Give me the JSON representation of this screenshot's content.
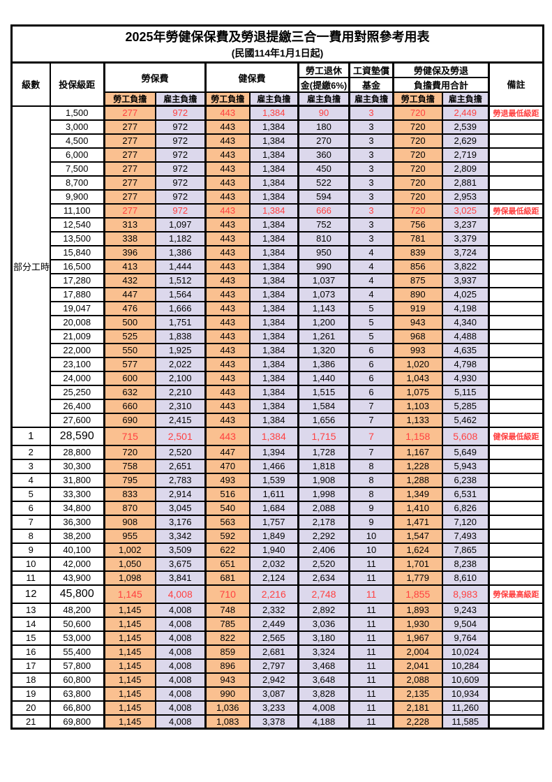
{
  "title": "2025年勞健保保費及勞退提繳三合一費用對照參考用表",
  "subtitle": "(民國114年1月1日起)",
  "header": {
    "level": "級數",
    "bracket": "投保級距",
    "labor_fee": "勞保費",
    "health_fee": "健保費",
    "pension_top": "勞工退休",
    "pension_bottom": "金(提繳6%)",
    "fund_top": "工資墊償",
    "fund_bottom": "基金",
    "total_top": "勞健保及勞退",
    "total_bottom": "負擔費用合計",
    "note": "備註",
    "employee_label": "勞工負擔",
    "employer_label": "雇主負擔"
  },
  "part_time_label": "部分工時",
  "colors": {
    "employee_bg": "#FAC090",
    "employer_bg": "#DCD8EC",
    "highlight_red": "#FF4040",
    "border": "#000000"
  },
  "rows": [
    {
      "level": "",
      "bracket": "1,500",
      "values": [
        "277",
        "972",
        "443",
        "1,384",
        "90",
        "3",
        "720",
        "2,449"
      ],
      "note": "勞退最低級距",
      "highlight": true,
      "big": false
    },
    {
      "level": "",
      "bracket": "3,000",
      "values": [
        "277",
        "972",
        "443",
        "1,384",
        "180",
        "3",
        "720",
        "2,539"
      ],
      "note": "",
      "highlight": false,
      "big": false
    },
    {
      "level": "",
      "bracket": "4,500",
      "values": [
        "277",
        "972",
        "443",
        "1,384",
        "270",
        "3",
        "720",
        "2,629"
      ],
      "note": "",
      "highlight": false,
      "big": false
    },
    {
      "level": "",
      "bracket": "6,000",
      "values": [
        "277",
        "972",
        "443",
        "1,384",
        "360",
        "3",
        "720",
        "2,719"
      ],
      "note": "",
      "highlight": false,
      "big": false
    },
    {
      "level": "",
      "bracket": "7,500",
      "values": [
        "277",
        "972",
        "443",
        "1,384",
        "450",
        "3",
        "720",
        "2,809"
      ],
      "note": "",
      "highlight": false,
      "big": false
    },
    {
      "level": "",
      "bracket": "8,700",
      "values": [
        "277",
        "972",
        "443",
        "1,384",
        "522",
        "3",
        "720",
        "2,881"
      ],
      "note": "",
      "highlight": false,
      "big": false
    },
    {
      "level": "",
      "bracket": "9,900",
      "values": [
        "277",
        "972",
        "443",
        "1,384",
        "594",
        "3",
        "720",
        "2,953"
      ],
      "note": "",
      "highlight": false,
      "big": false
    },
    {
      "level": "",
      "bracket": "11,100",
      "values": [
        "277",
        "972",
        "443",
        "1,384",
        "666",
        "3",
        "720",
        "3,025"
      ],
      "note": "勞保最低級距",
      "highlight": true,
      "big": false
    },
    {
      "level": "",
      "bracket": "12,540",
      "values": [
        "313",
        "1,097",
        "443",
        "1,384",
        "752",
        "3",
        "756",
        "3,237"
      ],
      "note": "",
      "highlight": false,
      "big": false
    },
    {
      "level": "",
      "bracket": "13,500",
      "values": [
        "338",
        "1,182",
        "443",
        "1,384",
        "810",
        "3",
        "781",
        "3,379"
      ],
      "note": "",
      "highlight": false,
      "big": false
    },
    {
      "level": "",
      "bracket": "15,840",
      "values": [
        "396",
        "1,386",
        "443",
        "1,384",
        "950",
        "4",
        "839",
        "3,724"
      ],
      "note": "",
      "highlight": false,
      "big": false
    },
    {
      "level": "",
      "bracket": "16,500",
      "values": [
        "413",
        "1,444",
        "443",
        "1,384",
        "990",
        "4",
        "856",
        "3,822"
      ],
      "note": "",
      "highlight": false,
      "big": false
    },
    {
      "level": "",
      "bracket": "17,280",
      "values": [
        "432",
        "1,512",
        "443",
        "1,384",
        "1,037",
        "4",
        "875",
        "3,937"
      ],
      "note": "",
      "highlight": false,
      "big": false
    },
    {
      "level": "",
      "bracket": "17,880",
      "values": [
        "447",
        "1,564",
        "443",
        "1,384",
        "1,073",
        "4",
        "890",
        "4,025"
      ],
      "note": "",
      "highlight": false,
      "big": false
    },
    {
      "level": "",
      "bracket": "19,047",
      "values": [
        "476",
        "1,666",
        "443",
        "1,384",
        "1,143",
        "5",
        "919",
        "4,198"
      ],
      "note": "",
      "highlight": false,
      "big": false
    },
    {
      "level": "",
      "bracket": "20,008",
      "values": [
        "500",
        "1,751",
        "443",
        "1,384",
        "1,200",
        "5",
        "943",
        "4,340"
      ],
      "note": "",
      "highlight": false,
      "big": false
    },
    {
      "level": "",
      "bracket": "21,009",
      "values": [
        "525",
        "1,838",
        "443",
        "1,384",
        "1,261",
        "5",
        "968",
        "4,488"
      ],
      "note": "",
      "highlight": false,
      "big": false
    },
    {
      "level": "",
      "bracket": "22,000",
      "values": [
        "550",
        "1,925",
        "443",
        "1,384",
        "1,320",
        "6",
        "993",
        "4,635"
      ],
      "note": "",
      "highlight": false,
      "big": false
    },
    {
      "level": "",
      "bracket": "23,100",
      "values": [
        "577",
        "2,022",
        "443",
        "1,384",
        "1,386",
        "6",
        "1,020",
        "4,798"
      ],
      "note": "",
      "highlight": false,
      "big": false
    },
    {
      "level": "",
      "bracket": "24,000",
      "values": [
        "600",
        "2,100",
        "443",
        "1,384",
        "1,440",
        "6",
        "1,043",
        "4,930"
      ],
      "note": "",
      "highlight": false,
      "big": false
    },
    {
      "level": "",
      "bracket": "25,250",
      "values": [
        "632",
        "2,210",
        "443",
        "1,384",
        "1,515",
        "6",
        "1,075",
        "5,115"
      ],
      "note": "",
      "highlight": false,
      "big": false
    },
    {
      "level": "",
      "bracket": "26,400",
      "values": [
        "660",
        "2,310",
        "443",
        "1,384",
        "1,584",
        "7",
        "1,103",
        "5,285"
      ],
      "note": "",
      "highlight": false,
      "big": false
    },
    {
      "level": "",
      "bracket": "27,600",
      "values": [
        "690",
        "2,415",
        "443",
        "1,384",
        "1,656",
        "7",
        "1,133",
        "5,462"
      ],
      "note": "",
      "highlight": false,
      "big": false
    },
    {
      "level": "1",
      "bracket": "28,590",
      "values": [
        "715",
        "2,501",
        "443",
        "1,384",
        "1,715",
        "7",
        "1,158",
        "5,608"
      ],
      "note": "健保最低級距",
      "highlight": true,
      "big": true
    },
    {
      "level": "2",
      "bracket": "28,800",
      "values": [
        "720",
        "2,520",
        "447",
        "1,394",
        "1,728",
        "7",
        "1,167",
        "5,649"
      ],
      "note": "",
      "highlight": false,
      "big": false
    },
    {
      "level": "3",
      "bracket": "30,300",
      "values": [
        "758",
        "2,651",
        "470",
        "1,466",
        "1,818",
        "8",
        "1,228",
        "5,943"
      ],
      "note": "",
      "highlight": false,
      "big": false
    },
    {
      "level": "4",
      "bracket": "31,800",
      "values": [
        "795",
        "2,783",
        "493",
        "1,539",
        "1,908",
        "8",
        "1,288",
        "6,238"
      ],
      "note": "",
      "highlight": false,
      "big": false
    },
    {
      "level": "5",
      "bracket": "33,300",
      "values": [
        "833",
        "2,914",
        "516",
        "1,611",
        "1,998",
        "8",
        "1,349",
        "6,531"
      ],
      "note": "",
      "highlight": false,
      "big": false
    },
    {
      "level": "6",
      "bracket": "34,800",
      "values": [
        "870",
        "3,045",
        "540",
        "1,684",
        "2,088",
        "9",
        "1,410",
        "6,826"
      ],
      "note": "",
      "highlight": false,
      "big": false
    },
    {
      "level": "7",
      "bracket": "36,300",
      "values": [
        "908",
        "3,176",
        "563",
        "1,757",
        "2,178",
        "9",
        "1,471",
        "7,120"
      ],
      "note": "",
      "highlight": false,
      "big": false
    },
    {
      "level": "8",
      "bracket": "38,200",
      "values": [
        "955",
        "3,342",
        "592",
        "1,849",
        "2,292",
        "10",
        "1,547",
        "7,493"
      ],
      "note": "",
      "highlight": false,
      "big": false
    },
    {
      "level": "9",
      "bracket": "40,100",
      "values": [
        "1,002",
        "3,509",
        "622",
        "1,940",
        "2,406",
        "10",
        "1,624",
        "7,865"
      ],
      "note": "",
      "highlight": false,
      "big": false
    },
    {
      "level": "10",
      "bracket": "42,000",
      "values": [
        "1,050",
        "3,675",
        "651",
        "2,032",
        "2,520",
        "11",
        "1,701",
        "8,238"
      ],
      "note": "",
      "highlight": false,
      "big": false
    },
    {
      "level": "11",
      "bracket": "43,900",
      "values": [
        "1,098",
        "3,841",
        "681",
        "2,124",
        "2,634",
        "11",
        "1,779",
        "8,610"
      ],
      "note": "",
      "highlight": false,
      "big": false
    },
    {
      "level": "12",
      "bracket": "45,800",
      "values": [
        "1,145",
        "4,008",
        "710",
        "2,216",
        "2,748",
        "11",
        "1,855",
        "8,983"
      ],
      "note": "勞保最高級距",
      "highlight": true,
      "big": true
    },
    {
      "level": "13",
      "bracket": "48,200",
      "values": [
        "1,145",
        "4,008",
        "748",
        "2,332",
        "2,892",
        "11",
        "1,893",
        "9,243"
      ],
      "note": "",
      "highlight": false,
      "big": false
    },
    {
      "level": "14",
      "bracket": "50,600",
      "values": [
        "1,145",
        "4,008",
        "785",
        "2,449",
        "3,036",
        "11",
        "1,930",
        "9,504"
      ],
      "note": "",
      "highlight": false,
      "big": false
    },
    {
      "level": "15",
      "bracket": "53,000",
      "values": [
        "1,145",
        "4,008",
        "822",
        "2,565",
        "3,180",
        "11",
        "1,967",
        "9,764"
      ],
      "note": "",
      "highlight": false,
      "big": false
    },
    {
      "level": "16",
      "bracket": "55,400",
      "values": [
        "1,145",
        "4,008",
        "859",
        "2,681",
        "3,324",
        "11",
        "2,004",
        "10,024"
      ],
      "note": "",
      "highlight": false,
      "big": false
    },
    {
      "level": "17",
      "bracket": "57,800",
      "values": [
        "1,145",
        "4,008",
        "896",
        "2,797",
        "3,468",
        "11",
        "2,041",
        "10,284"
      ],
      "note": "",
      "highlight": false,
      "big": false
    },
    {
      "level": "18",
      "bracket": "60,800",
      "values": [
        "1,145",
        "4,008",
        "943",
        "2,942",
        "3,648",
        "11",
        "2,088",
        "10,609"
      ],
      "note": "",
      "highlight": false,
      "big": false
    },
    {
      "level": "19",
      "bracket": "63,800",
      "values": [
        "1,145",
        "4,008",
        "990",
        "3,087",
        "3,828",
        "11",
        "2,135",
        "10,934"
      ],
      "note": "",
      "highlight": false,
      "big": false
    },
    {
      "level": "20",
      "bracket": "66,800",
      "values": [
        "1,145",
        "4,008",
        "1,036",
        "3,233",
        "4,008",
        "11",
        "2,181",
        "11,260"
      ],
      "note": "",
      "highlight": false,
      "big": false
    },
    {
      "level": "21",
      "bracket": "69,800",
      "values": [
        "1,145",
        "4,008",
        "1,083",
        "3,378",
        "4,188",
        "11",
        "2,228",
        "11,585"
      ],
      "note": "",
      "highlight": false,
      "big": false
    }
  ]
}
